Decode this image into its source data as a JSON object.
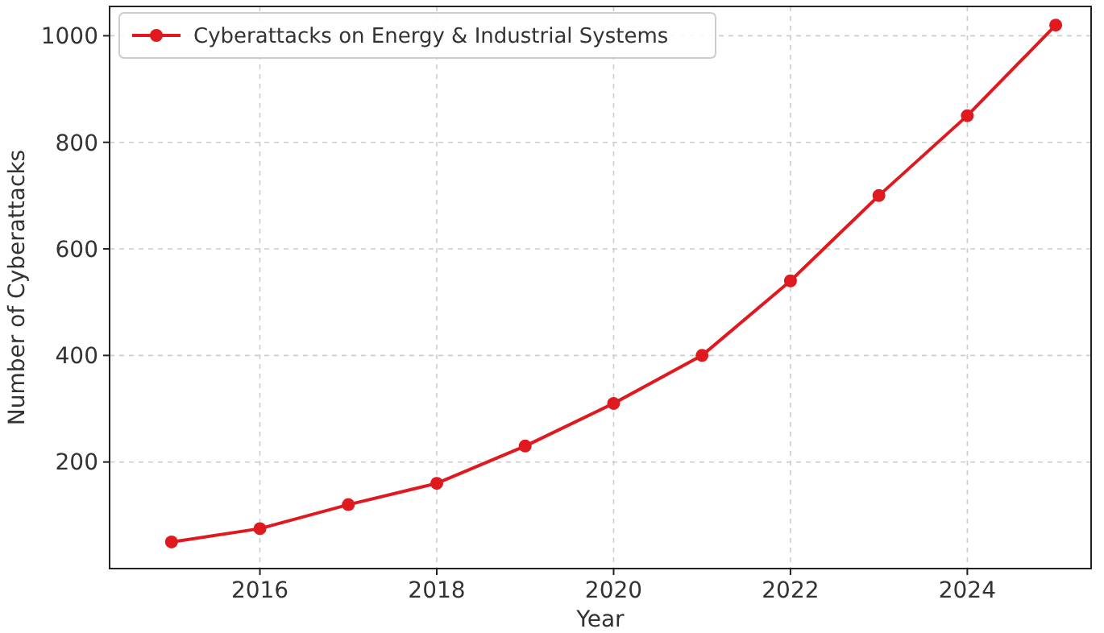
{
  "chart_data": {
    "type": "line",
    "xlabel": "Year",
    "ylabel": "Number of Cyberattacks",
    "x": [
      2015,
      2016,
      2017,
      2018,
      2019,
      2020,
      2021,
      2022,
      2023,
      2024,
      2025
    ],
    "series": [
      {
        "name": "Cyberattacks on Energy & Industrial Systems",
        "color": "#e0191e",
        "values": [
          50,
          75,
          120,
          160,
          230,
          310,
          400,
          540,
          700,
          850,
          1020
        ]
      }
    ],
    "xlim": [
      2014.3,
      2025.4
    ],
    "xticks": [
      2016,
      2018,
      2020,
      2022,
      2024
    ],
    "ylim": [
      0,
      1055
    ],
    "yticks": [
      200,
      400,
      600,
      800,
      1000
    ],
    "grid": true,
    "legend": "top left",
    "marker": "circle",
    "line_style": "solid"
  }
}
